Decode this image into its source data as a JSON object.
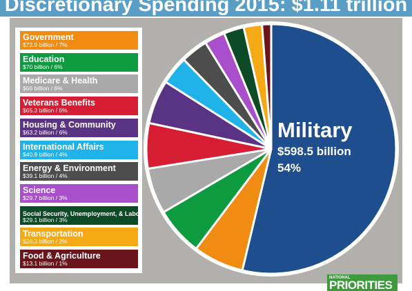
{
  "title": "Discretionary Spending 2015: $1.11 trillion",
  "logo": {
    "top": "NATIONAL",
    "main": "PRIORITIES"
  },
  "chart_data": {
    "type": "pie",
    "title": "Discretionary Spending 2015: $1.11 trillion",
    "total": "$1.11 trillion",
    "legend_position": "left",
    "slices": [
      {
        "name": "Military",
        "value": 598.5,
        "amount": "$598.5 billion",
        "percent": "54%",
        "color": "#1f4e8f"
      },
      {
        "name": "Government",
        "value": 72.9,
        "detail": "$72.9 billion / 7%",
        "color": "#ef8c11"
      },
      {
        "name": "Education",
        "value": 70,
        "detail": "$70 billion / 6%",
        "color": "#0e9b3f"
      },
      {
        "name": "Medicare & Health",
        "value": 66,
        "detail": "$66 billion / 6%",
        "color": "#a9a9a9"
      },
      {
        "name": "Veterans Benefits",
        "value": 65.3,
        "detail": "$65.3 billion / 6%",
        "color": "#d61d33"
      },
      {
        "name": "Housing & Community",
        "value": 63.2,
        "detail": "$63.2 billion / 6%",
        "color": "#5a3384"
      },
      {
        "name": "International Affairs",
        "value": 40.9,
        "detail": "$40.9 billion / 4%",
        "color": "#1fb3e9"
      },
      {
        "name": "Energy & Environment",
        "value": 39.1,
        "detail": "$39.1 billion / 4%",
        "color": "#4d4d4d"
      },
      {
        "name": "Science",
        "value": 29.7,
        "detail": "$29.7 billion / 3%",
        "color": "#a94fcc"
      },
      {
        "name": "Social Security, Unemployment, & Labor",
        "value": 29.1,
        "detail": "$29.1 billion / 3%",
        "color": "#0d4a26"
      },
      {
        "name": "Transportation",
        "value": 26.3,
        "detail": "$26.3 billion / 2%",
        "color": "#f5a915"
      },
      {
        "name": "Food & Agriculture",
        "value": 13.1,
        "detail": "$13.1 billion / 1%",
        "color": "#6a141b"
      }
    ]
  }
}
